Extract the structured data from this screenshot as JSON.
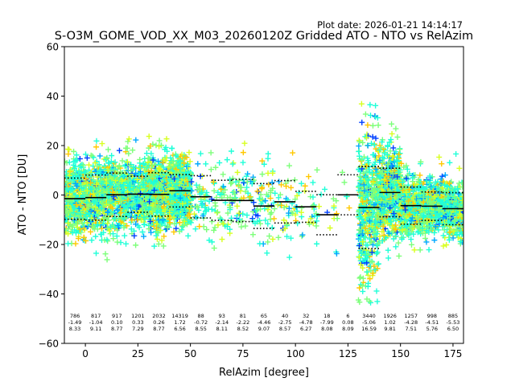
{
  "plot_date": "Plot date: 2026-01-21 14:14:17",
  "chart_data": {
    "type": "scatter",
    "title": "S-O3M_GOME_VOD_XX_M03_20260120Z Gridded ATO - NTO vs RelAzim",
    "xlabel": "RelAzim [degree]",
    "ylabel": "ATO - NTO [DU]",
    "xlim": [
      -10,
      180
    ],
    "ylim": [
      -60,
      60
    ],
    "xticks": [
      "0",
      "25",
      "50",
      "75",
      "100",
      "125",
      "150",
      "175"
    ],
    "yticks": [
      "−60",
      "−40",
      "−20",
      "0",
      "20",
      "40",
      "60"
    ],
    "grid": false,
    "marker": "+",
    "colormap": "jet",
    "point_colors": [
      "#0040ff",
      "#00a8ff",
      "#20ffd8",
      "#7dff7a",
      "#d8ff20",
      "#ffc800"
    ],
    "bins": [
      {
        "center": -5,
        "n": "786",
        "mean": "-1.49",
        "std": "8.33"
      },
      {
        "center": 5,
        "n": "817",
        "mean": "-1.04",
        "std": "9.11"
      },
      {
        "center": 15,
        "n": "917",
        "mean": "0.10",
        "std": "8.77"
      },
      {
        "center": 25,
        "n": "1201",
        "mean": "0.33",
        "std": "7.29"
      },
      {
        "center": 35,
        "n": "2032",
        "mean": "0.26",
        "std": "8.77"
      },
      {
        "center": 45,
        "n": "14319",
        "mean": "1.72",
        "std": "6.56"
      },
      {
        "center": 55,
        "n": "88",
        "mean": "-0.72",
        "std": "8.55"
      },
      {
        "center": 65,
        "n": "93",
        "mean": "-2.14",
        "std": "8.11"
      },
      {
        "center": 75,
        "n": "81",
        "mean": "-2.22",
        "std": "8.52"
      },
      {
        "center": 85,
        "n": "65",
        "mean": "-4.46",
        "std": "9.07"
      },
      {
        "center": 95,
        "n": "40",
        "mean": "-2.75",
        "std": "8.57"
      },
      {
        "center": 105,
        "n": "32",
        "mean": "-4.78",
        "std": "6.27"
      },
      {
        "center": 115,
        "n": "18",
        "mean": "-7.99",
        "std": "8.08"
      },
      {
        "center": 125,
        "n": "6",
        "mean": "0.08",
        "std": "8.09"
      },
      {
        "center": 135,
        "n": "3440",
        "mean": "-5.06",
        "std": "16.59"
      },
      {
        "center": 145,
        "n": "1926",
        "mean": "1.02",
        "std": "9.81"
      },
      {
        "center": 155,
        "n": "1257",
        "mean": "-4.28",
        "std": "7.51"
      },
      {
        "center": 165,
        "n": "998",
        "mean": "-4.51",
        "std": "5.76"
      },
      {
        "center": 175,
        "n": "885",
        "mean": "-5.53",
        "std": "6.50"
      }
    ]
  }
}
